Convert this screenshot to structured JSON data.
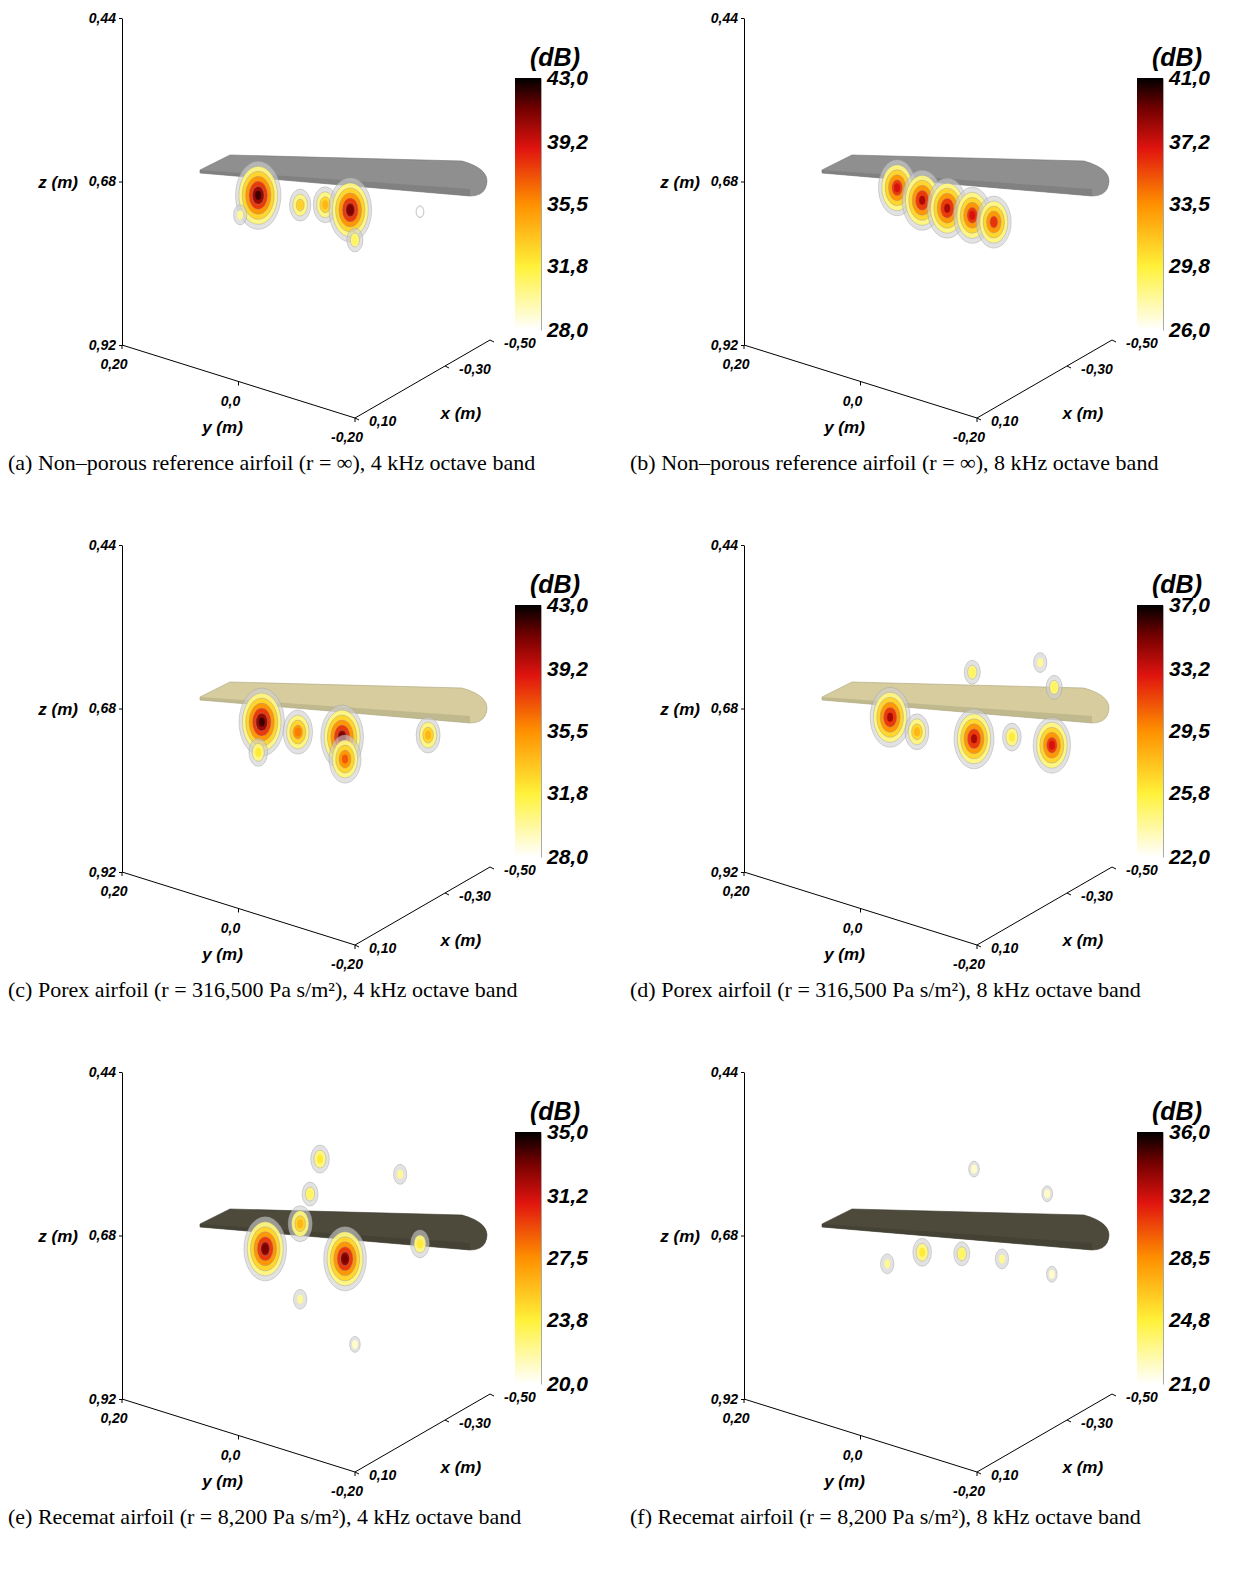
{
  "chart_data": [
    {
      "type": "isosurface",
      "title": "(a) Non–porous reference airfoil (r = ∞), 4 kHz octave band",
      "color": "#8f8f8f",
      "xlabel": "x (m)",
      "ylabel": "y (m)",
      "zlabel": "z (m)",
      "colorbar_title": "(dB)",
      "xlim": [
        0.1,
        -0.5
      ],
      "xticks": [
        {
          "value": 0.1,
          "label": "0,10"
        },
        {
          "value": -0.3,
          "label": "-0,30"
        },
        {
          "value": -0.5,
          "label": "-0,50"
        }
      ],
      "ylim": [
        0.2,
        -0.2
      ],
      "yticks": [
        {
          "value": 0.2,
          "label": "0,20"
        },
        {
          "value": 0,
          "label": "0,0"
        },
        {
          "value": -0.2,
          "label": "-0,20"
        }
      ],
      "zlim": [
        0.44,
        0.92
      ],
      "zticks": [
        {
          "value": 0.44,
          "label": "0,44"
        },
        {
          "value": 0.68,
          "label": "0,68"
        },
        {
          "value": 0.92,
          "label": "0,92"
        }
      ],
      "clim": [
        28,
        43
      ],
      "cticks": [
        {
          "value": 28,
          "label": "28,0"
        },
        {
          "value": 31.8,
          "label": "31,8"
        },
        {
          "value": 35.5,
          "label": "35,5"
        },
        {
          "value": 39.2,
          "label": "39,2"
        },
        {
          "value": 43,
          "label": "43,0"
        }
      ],
      "sources": [
        {
          "x": -0.2,
          "y": 0.082,
          "z": 0.726,
          "level": 42
        },
        {
          "x": -0.2,
          "y": 0.01,
          "z": 0.721,
          "level": 33
        },
        {
          "x": -0.2,
          "y": -0.033,
          "z": 0.709,
          "level": 34
        },
        {
          "x": -0.2,
          "y": -0.076,
          "z": 0.705,
          "level": 41
        },
        {
          "x": -0.2,
          "y": -0.084,
          "z": 0.747,
          "level": 31
        },
        {
          "x": -0.2,
          "y": 0.113,
          "z": 0.763,
          "level": 30
        },
        {
          "x": -0.3,
          "y": -0.157,
          "z": 0.705,
          "level": 28
        }
      ]
    },
    {
      "type": "isosurface",
      "title": "(b) Non–porous reference airfoil (r = ∞), 8 kHz octave band",
      "color": "#8f8f8f",
      "xlabel": "x (m)",
      "ylabel": "y (m)",
      "zlabel": "z (m)",
      "colorbar_title": "(dB)",
      "xlim": [
        0.1,
        -0.5
      ],
      "xticks": [
        {
          "value": 0.1,
          "label": "0,10"
        },
        {
          "value": -0.3,
          "label": "-0,30"
        },
        {
          "value": -0.5,
          "label": "-0,50"
        }
      ],
      "ylim": [
        0.2,
        -0.2
      ],
      "yticks": [
        {
          "value": 0.2,
          "label": "0,20"
        },
        {
          "value": 0,
          "label": "0,0"
        },
        {
          "value": -0.2,
          "label": "-0,20"
        }
      ],
      "zlim": [
        0.44,
        0.92
      ],
      "zticks": [
        {
          "value": 0.44,
          "label": "0,44"
        },
        {
          "value": 0.68,
          "label": "0,68"
        },
        {
          "value": 0.92,
          "label": "0,92"
        }
      ],
      "clim": [
        26,
        41
      ],
      "cticks": [
        {
          "value": 26,
          "label": "26,0"
        },
        {
          "value": 29.8,
          "label": "29,8"
        },
        {
          "value": 33.5,
          "label": "33,5"
        },
        {
          "value": 37.2,
          "label": "37,2"
        },
        {
          "value": 41,
          "label": "41,0"
        }
      ],
      "sources": [
        {
          "x": -0.2,
          "y": 0.053,
          "z": 0.707,
          "level": 37
        },
        {
          "x": -0.2,
          "y": 0.01,
          "z": 0.714,
          "level": 38
        },
        {
          "x": -0.2,
          "y": -0.033,
          "z": 0.714,
          "level": 38
        },
        {
          "x": -0.2,
          "y": -0.076,
          "z": 0.713,
          "level": 37
        },
        {
          "x": -0.2,
          "y": -0.113,
          "z": 0.713,
          "level": 36
        }
      ]
    },
    {
      "type": "isosurface",
      "title": "(c) Porex airfoil (r = 316,500 Pa s/m²), 4 kHz octave band",
      "color": "#d6cc9e",
      "xlabel": "x (m)",
      "ylabel": "y (m)",
      "zlabel": "z (m)",
      "colorbar_title": "(dB)",
      "xlim": [
        0.1,
        -0.5
      ],
      "xticks": [
        {
          "value": 0.1,
          "label": "0,10"
        },
        {
          "value": -0.3,
          "label": "-0,30"
        },
        {
          "value": -0.5,
          "label": "-0,50"
        }
      ],
      "ylim": [
        0.2,
        -0.2
      ],
      "yticks": [
        {
          "value": 0.2,
          "label": "0,20"
        },
        {
          "value": 0,
          "label": "0,0"
        },
        {
          "value": -0.2,
          "label": "-0,20"
        }
      ],
      "zlim": [
        0.44,
        0.92
      ],
      "zticks": [
        {
          "value": 0.44,
          "label": "0,44"
        },
        {
          "value": 0.68,
          "label": "0,68"
        },
        {
          "value": 0.92,
          "label": "0,92"
        }
      ],
      "clim": [
        28,
        43
      ],
      "cticks": [
        {
          "value": 28,
          "label": "28,0"
        },
        {
          "value": 31.8,
          "label": "31,8"
        },
        {
          "value": 35.5,
          "label": "35,5"
        },
        {
          "value": 39.2,
          "label": "39,2"
        },
        {
          "value": 43,
          "label": "43,0"
        }
      ],
      "sources": [
        {
          "x": -0.2,
          "y": 0.076,
          "z": 0.724,
          "level": 42
        },
        {
          "x": -0.2,
          "y": 0.082,
          "z": 0.77,
          "level": 32
        },
        {
          "x": -0.2,
          "y": 0.014,
          "z": 0.722,
          "level": 36
        },
        {
          "x": -0.2,
          "y": -0.062,
          "z": 0.709,
          "level": 41
        },
        {
          "x": -0.2,
          "y": -0.067,
          "z": 0.74,
          "level": 37
        },
        {
          "x": -0.3,
          "y": -0.171,
          "z": 0.696,
          "level": 34
        }
      ]
    },
    {
      "type": "isosurface",
      "title": "(d) Porex airfoil (r = 316,500 Pa s/m²), 8 kHz octave band",
      "color": "#d6cc9e",
      "xlabel": "x (m)",
      "ylabel": "y (m)",
      "zlabel": "z (m)",
      "colorbar_title": "(dB)",
      "xlim": [
        0.1,
        -0.5
      ],
      "xticks": [
        {
          "value": 0.1,
          "label": "0,10"
        },
        {
          "value": -0.3,
          "label": "-0,30"
        },
        {
          "value": -0.5,
          "label": "-0,50"
        }
      ],
      "ylim": [
        0.2,
        -0.2
      ],
      "yticks": [
        {
          "value": 0.2,
          "label": "0,20"
        },
        {
          "value": 0,
          "label": "0,0"
        },
        {
          "value": -0.2,
          "label": "-0,20"
        }
      ],
      "zlim": [
        0.44,
        0.92
      ],
      "zticks": [
        {
          "value": 0.44,
          "label": "0,44"
        },
        {
          "value": 0.68,
          "label": "0,68"
        },
        {
          "value": 0.92,
          "label": "0,92"
        }
      ],
      "clim": [
        22,
        37
      ],
      "cticks": [
        {
          "value": 22,
          "label": "22,0"
        },
        {
          "value": 25.8,
          "label": "25,8"
        },
        {
          "value": 29.5,
          "label": "29,5"
        },
        {
          "value": 33.2,
          "label": "33,2"
        },
        {
          "value": 37,
          "label": "37,0"
        }
      ],
      "sources": [
        {
          "x": -0.2,
          "y": 0.065,
          "z": 0.714,
          "level": 34
        },
        {
          "x": -0.2,
          "y": 0.019,
          "z": 0.723,
          "level": 28
        },
        {
          "x": -0.2,
          "y": -0.079,
          "z": 0.707,
          "level": 34
        },
        {
          "x": -0.2,
          "y": -0.144,
          "z": 0.687,
          "level": 26
        },
        {
          "x": -0.3,
          "y": -0.174,
          "z": 0.71,
          "level": 33
        },
        {
          "x": -0.2,
          "y": -0.076,
          "z": 0.61,
          "level": 25
        },
        {
          "x": -0.3,
          "y": -0.154,
          "z": 0.594,
          "level": 24
        },
        {
          "x": -0.3,
          "y": -0.178,
          "z": 0.624,
          "level": 25
        }
      ]
    },
    {
      "type": "isosurface",
      "title": "(e) Recemat airfoil (r = 8,200 Pa s/m²), 4 kHz octave band",
      "color": "#4d4a3b",
      "xlabel": "x (m)",
      "ylabel": "y (m)",
      "zlabel": "z (m)",
      "colorbar_title": "(dB)",
      "xlim": [
        0.1,
        -0.5
      ],
      "xticks": [
        {
          "value": 0.1,
          "label": "0,10"
        },
        {
          "value": -0.3,
          "label": "-0,30"
        },
        {
          "value": -0.5,
          "label": "-0,50"
        }
      ],
      "ylim": [
        0.2,
        -0.2
      ],
      "yticks": [
        {
          "value": 0.2,
          "label": "0,20"
        },
        {
          "value": 0,
          "label": "0,0"
        },
        {
          "value": -0.2,
          "label": "-0,20"
        }
      ],
      "zlim": [
        0.44,
        0.92
      ],
      "zticks": [
        {
          "value": 0.44,
          "label": "0,44"
        },
        {
          "value": 0.68,
          "label": "0,68"
        },
        {
          "value": 0.92,
          "label": "0,92"
        }
      ],
      "clim": [
        20,
        35
      ],
      "cticks": [
        {
          "value": 20,
          "label": "20,0"
        },
        {
          "value": 23.8,
          "label": "23,8"
        },
        {
          "value": 27.5,
          "label": "27,5"
        },
        {
          "value": 31.2,
          "label": "31,2"
        },
        {
          "value": 35,
          "label": "35,0"
        }
      ],
      "sources": [
        {
          "x": -0.2,
          "y": 0.07,
          "z": 0.722,
          "level": 33
        },
        {
          "x": -0.2,
          "y": -0.067,
          "z": 0.7,
          "level": 33
        },
        {
          "x": -0.2,
          "y": 0.01,
          "z": 0.669,
          "level": 26
        },
        {
          "x": -0.2,
          "y": -0.024,
          "z": 0.565,
          "level": 24
        },
        {
          "x": -0.2,
          "y": -0.007,
          "z": 0.621,
          "level": 23
        },
        {
          "x": -0.3,
          "y": -0.157,
          "z": 0.673,
          "level": 24
        },
        {
          "x": -0.3,
          "y": -0.123,
          "z": 0.58,
          "level": 22
        },
        {
          "x": -0.2,
          "y": 0.01,
          "z": 0.78,
          "level": 22
        },
        {
          "x": -0.2,
          "y": -0.084,
          "z": 0.821,
          "level": 21
        }
      ]
    },
    {
      "type": "isosurface",
      "title": "(f) Recemat airfoil (r = 8,200 Pa s/m²), 8 kHz octave band",
      "color": "#4d4a3b",
      "xlabel": "x (m)",
      "ylabel": "y (m)",
      "zlabel": "z (m)",
      "colorbar_title": "(dB)",
      "xlim": [
        0.1,
        -0.5
      ],
      "xticks": [
        {
          "value": 0.1,
          "label": "0,10"
        },
        {
          "value": -0.3,
          "label": "-0,30"
        },
        {
          "value": -0.5,
          "label": "-0,50"
        }
      ],
      "ylim": [
        0.2,
        -0.2
      ],
      "yticks": [
        {
          "value": 0.2,
          "label": "0,20"
        },
        {
          "value": 0,
          "label": "0,0"
        },
        {
          "value": -0.2,
          "label": "-0,20"
        }
      ],
      "zlim": [
        0.44,
        0.92
      ],
      "zticks": [
        {
          "value": 0.44,
          "label": "0,44"
        },
        {
          "value": 0.68,
          "label": "0,68"
        },
        {
          "value": 0.92,
          "label": "0,92"
        }
      ],
      "clim": [
        21,
        36
      ],
      "cticks": [
        {
          "value": 21,
          "label": "21,0"
        },
        {
          "value": 24.8,
          "label": "24,8"
        },
        {
          "value": 28.5,
          "label": "28,5"
        },
        {
          "value": 32.2,
          "label": "32,2"
        },
        {
          "value": 36,
          "label": "36,0"
        }
      ],
      "sources": [
        {
          "x": -0.2,
          "y": 0.07,
          "z": 0.744,
          "level": 23
        },
        {
          "x": -0.2,
          "y": 0.01,
          "z": 0.711,
          "level": 25
        },
        {
          "x": -0.2,
          "y": -0.058,
          "z": 0.695,
          "level": 24
        },
        {
          "x": -0.2,
          "y": -0.127,
          "z": 0.684,
          "level": 23
        },
        {
          "x": -0.3,
          "y": -0.174,
          "z": 0.713,
          "level": 22
        },
        {
          "x": -0.2,
          "y": -0.079,
          "z": 0.565,
          "level": 22
        },
        {
          "x": -0.3,
          "y": -0.166,
          "z": 0.597,
          "level": 22
        }
      ]
    }
  ]
}
